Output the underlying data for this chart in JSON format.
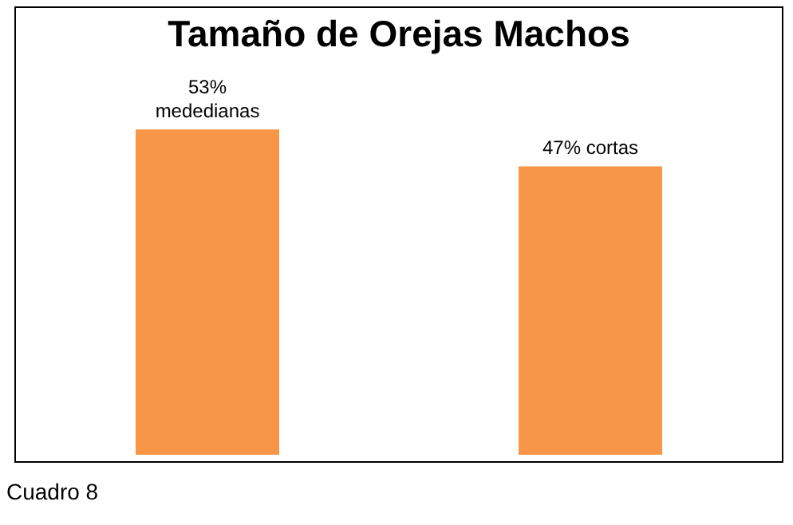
{
  "chart_data": {
    "type": "bar",
    "title": "Tamaño de Orejas Machos",
    "categories": [
      null,
      null
    ],
    "values": [
      53,
      47
    ],
    "value_labels": [
      "53% mededianas",
      "47% cortas"
    ],
    "color": "#f79646",
    "tick_labels": false,
    "legend": false,
    "annotations": [
      "Cuadro 8"
    ]
  }
}
